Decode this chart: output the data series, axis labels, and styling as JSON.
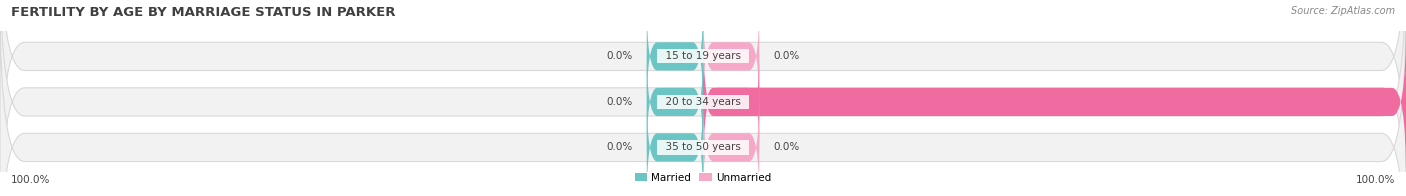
{
  "title": "FERTILITY BY AGE BY MARRIAGE STATUS IN PARKER",
  "source": "Source: ZipAtlas.com",
  "categories": [
    "15 to 19 years",
    "20 to 34 years",
    "35 to 50 years"
  ],
  "married_values": [
    0.0,
    0.0,
    0.0
  ],
  "unmarried_values": [
    0.0,
    100.0,
    0.0
  ],
  "married_color": "#6cc5c5",
  "unmarried_color": "#f06ba0",
  "unmarried_color_light": "#f5a8c8",
  "bar_bg_color": "#f2f2f2",
  "bar_border_color": "#d8d8d8",
  "title_fontsize": 9.5,
  "label_fontsize": 7.5,
  "source_fontsize": 7,
  "axis_label_left": "100.0%",
  "axis_label_right": "100.0%",
  "legend_married": "Married",
  "legend_unmarried": "Unmarried"
}
